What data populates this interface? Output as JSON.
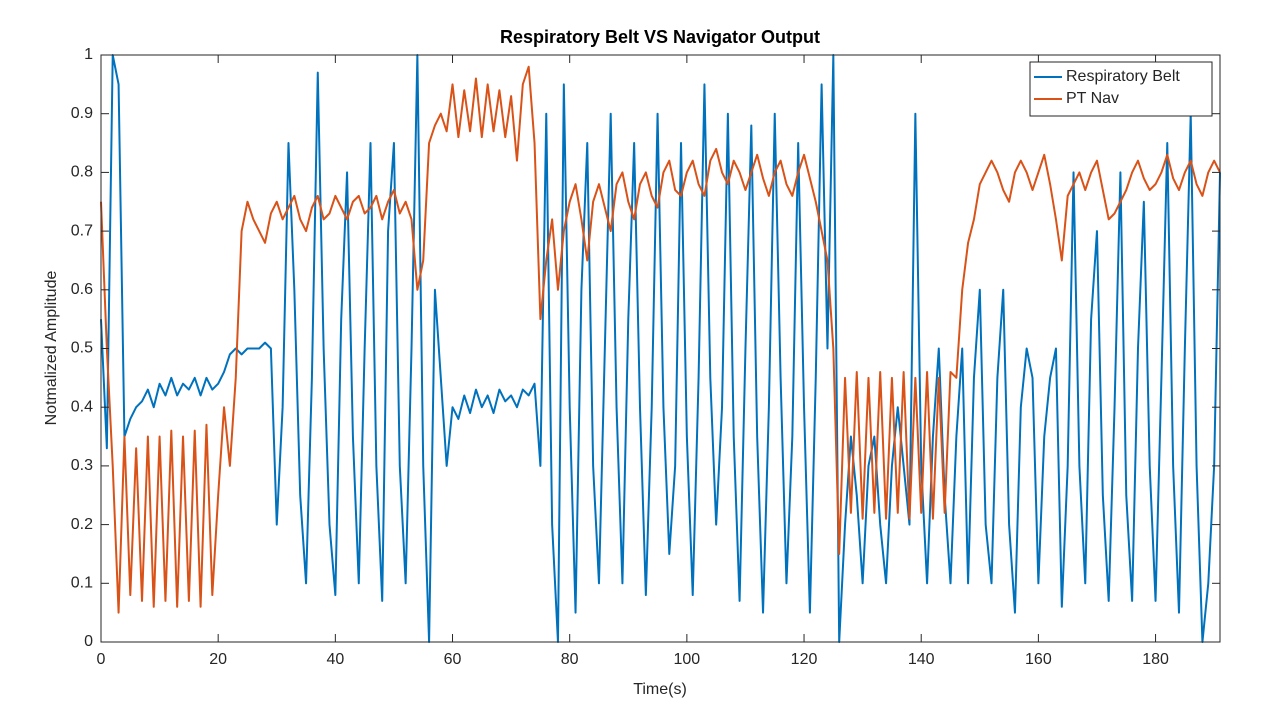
{
  "chart_data": {
    "type": "line",
    "title": "Respiratory Belt VS Navigator Output",
    "xlabel": "Time(s)",
    "ylabel": "Notmalized Amplitude",
    "x": [
      0,
      1,
      2,
      3,
      4,
      5,
      6,
      7,
      8,
      9,
      10,
      11,
      12,
      13,
      14,
      15,
      16,
      17,
      18,
      19,
      20,
      21,
      22,
      23,
      24,
      25,
      26,
      27,
      28,
      29,
      30,
      31,
      32,
      33,
      34,
      35,
      36,
      37,
      38,
      39,
      40,
      41,
      42,
      43,
      44,
      45,
      46,
      47,
      48,
      49,
      50,
      51,
      52,
      53,
      54,
      55,
      56,
      57,
      58,
      59,
      60,
      61,
      62,
      63,
      64,
      65,
      66,
      67,
      68,
      69,
      70,
      71,
      72,
      73,
      74,
      75,
      76,
      77,
      78,
      79,
      80,
      81,
      82,
      83,
      84,
      85,
      86,
      87,
      88,
      89,
      90,
      91,
      92,
      93,
      94,
      95,
      96,
      97,
      98,
      99,
      100,
      101,
      102,
      103,
      104,
      105,
      106,
      107,
      108,
      109,
      110,
      111,
      112,
      113,
      114,
      115,
      116,
      117,
      118,
      119,
      120,
      121,
      122,
      123,
      124,
      125,
      126,
      127,
      128,
      129,
      130,
      131,
      132,
      133,
      134,
      135,
      136,
      137,
      138,
      139,
      140,
      141,
      142,
      143,
      144,
      145,
      146,
      147,
      148,
      149,
      150,
      151,
      152,
      153,
      154,
      155,
      156,
      157,
      158,
      159,
      160,
      161,
      162,
      163,
      164,
      165,
      166,
      167,
      168,
      169,
      170,
      171,
      172,
      173,
      174,
      175,
      176,
      177,
      178,
      179,
      180,
      181,
      182,
      183,
      184,
      185,
      186,
      187,
      188,
      189,
      190,
      191
    ],
    "series": [
      {
        "name": "Respiratory Belt",
        "color": "#0072BD",
        "values": [
          0.55,
          0.33,
          1.0,
          0.95,
          0.35,
          0.38,
          0.4,
          0.41,
          0.43,
          0.4,
          0.44,
          0.42,
          0.45,
          0.42,
          0.44,
          0.43,
          0.45,
          0.42,
          0.45,
          0.43,
          0.44,
          0.46,
          0.49,
          0.5,
          0.49,
          0.5,
          0.5,
          0.5,
          0.51,
          0.5,
          0.2,
          0.4,
          0.85,
          0.6,
          0.25,
          0.1,
          0.45,
          0.97,
          0.5,
          0.2,
          0.08,
          0.55,
          0.8,
          0.35,
          0.1,
          0.5,
          0.85,
          0.3,
          0.07,
          0.7,
          0.85,
          0.3,
          0.1,
          0.5,
          1.0,
          0.3,
          0,
          0.6,
          0.45,
          0.3,
          0.4,
          0.38,
          0.42,
          0.39,
          0.43,
          0.4,
          0.42,
          0.39,
          0.43,
          0.41,
          0.42,
          0.4,
          0.43,
          0.42,
          0.44,
          0.3,
          0.9,
          0.2,
          0,
          0.95,
          0.4,
          0.05,
          0.6,
          0.85,
          0.3,
          0.1,
          0.5,
          0.9,
          0.4,
          0.1,
          0.55,
          0.85,
          0.4,
          0.08,
          0.4,
          0.9,
          0.4,
          0.15,
          0.3,
          0.85,
          0.35,
          0.08,
          0.45,
          0.95,
          0.45,
          0.2,
          0.4,
          0.9,
          0.35,
          0.07,
          0.5,
          0.88,
          0.35,
          0.05,
          0.4,
          0.9,
          0.45,
          0.1,
          0.35,
          0.85,
          0.4,
          0.05,
          0.45,
          0.95,
          0.5,
          1.0,
          0,
          0.2,
          0.35,
          0.25,
          0.1,
          0.3,
          0.35,
          0.2,
          0.1,
          0.3,
          0.4,
          0.3,
          0.2,
          0.9,
          0.3,
          0.1,
          0.35,
          0.5,
          0.25,
          0.1,
          0.35,
          0.5,
          0.1,
          0.45,
          0.6,
          0.2,
          0.1,
          0.45,
          0.6,
          0.2,
          0.05,
          0.4,
          0.5,
          0.45,
          0.1,
          0.35,
          0.45,
          0.5,
          0.06,
          0.3,
          0.8,
          0.3,
          0.1,
          0.55,
          0.7,
          0.25,
          0.07,
          0.4,
          0.8,
          0.25,
          0.07,
          0.5,
          0.75,
          0.3,
          0.07,
          0.45,
          0.85,
          0.3,
          0.05,
          0.5,
          0.9,
          0.3,
          0,
          0.1,
          0.3,
          0.8
        ]
      },
      {
        "name": "PT Nav",
        "color": "#D95319",
        "values": [
          0.75,
          0.5,
          0.3,
          0.05,
          0.35,
          0.08,
          0.33,
          0.07,
          0.35,
          0.06,
          0.35,
          0.07,
          0.36,
          0.06,
          0.35,
          0.07,
          0.36,
          0.06,
          0.37,
          0.08,
          0.25,
          0.4,
          0.3,
          0.45,
          0.7,
          0.75,
          0.72,
          0.7,
          0.68,
          0.73,
          0.75,
          0.72,
          0.74,
          0.76,
          0.72,
          0.7,
          0.74,
          0.76,
          0.72,
          0.73,
          0.76,
          0.74,
          0.72,
          0.75,
          0.76,
          0.73,
          0.74,
          0.76,
          0.72,
          0.75,
          0.77,
          0.73,
          0.75,
          0.72,
          0.6,
          0.65,
          0.85,
          0.88,
          0.9,
          0.87,
          0.95,
          0.86,
          0.94,
          0.87,
          0.96,
          0.86,
          0.95,
          0.87,
          0.94,
          0.86,
          0.93,
          0.82,
          0.95,
          0.98,
          0.85,
          0.55,
          0.65,
          0.72,
          0.6,
          0.7,
          0.75,
          0.78,
          0.72,
          0.65,
          0.75,
          0.78,
          0.74,
          0.7,
          0.78,
          0.8,
          0.75,
          0.72,
          0.78,
          0.8,
          0.76,
          0.74,
          0.8,
          0.82,
          0.77,
          0.76,
          0.8,
          0.82,
          0.78,
          0.76,
          0.82,
          0.84,
          0.8,
          0.78,
          0.82,
          0.8,
          0.77,
          0.8,
          0.83,
          0.79,
          0.76,
          0.8,
          0.82,
          0.78,
          0.76,
          0.8,
          0.83,
          0.79,
          0.75,
          0.7,
          0.65,
          0.5,
          0.15,
          0.45,
          0.22,
          0.46,
          0.21,
          0.45,
          0.22,
          0.46,
          0.21,
          0.45,
          0.22,
          0.46,
          0.21,
          0.45,
          0.22,
          0.46,
          0.21,
          0.45,
          0.22,
          0.46,
          0.45,
          0.6,
          0.68,
          0.72,
          0.78,
          0.8,
          0.82,
          0.8,
          0.77,
          0.75,
          0.8,
          0.82,
          0.8,
          0.77,
          0.8,
          0.83,
          0.78,
          0.72,
          0.65,
          0.76,
          0.78,
          0.8,
          0.77,
          0.8,
          0.82,
          0.77,
          0.72,
          0.73,
          0.75,
          0.77,
          0.8,
          0.82,
          0.79,
          0.77,
          0.78,
          0.8,
          0.83,
          0.79,
          0.77,
          0.8,
          0.82,
          0.78,
          0.76,
          0.8,
          0.82,
          0.8
        ]
      }
    ],
    "xlim": [
      0,
      191
    ],
    "ylim": [
      0,
      1
    ],
    "xticks": [
      0,
      20,
      40,
      60,
      80,
      100,
      120,
      140,
      160,
      180
    ],
    "yticks": [
      0,
      0.1,
      0.2,
      0.3,
      0.4,
      0.5,
      0.6,
      0.7,
      0.8,
      0.9,
      1
    ],
    "grid": false,
    "legend": "northeast"
  }
}
